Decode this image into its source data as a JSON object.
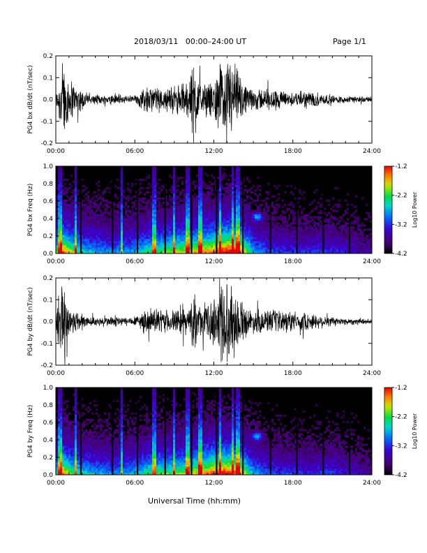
{
  "header": {
    "title": "2018/03/11   00:00–24:00 UT",
    "page": "Page 1/1"
  },
  "footer": {
    "xlabel": "Universal Time (hh:mm)"
  },
  "chart_data": [
    {
      "type": "line",
      "ylabel": "PG4 bx dB/dt (nT/sec)",
      "xlim": [
        0,
        24
      ],
      "ylim": [
        -0.2,
        0.2
      ],
      "x_ticks": [
        "00:00",
        "06:00",
        "12:00",
        "18:00",
        "24:00"
      ],
      "y_ticks": [
        "-0.2",
        "-0.1",
        "0.0",
        "0.1",
        "0.2"
      ],
      "series": [
        {
          "x": [
            0,
            0.3,
            0.5,
            0.8,
            1.2,
            1.5,
            2.0,
            2.5,
            3.0,
            4.0,
            4.5,
            5.0,
            6.0,
            6.5,
            7.0,
            8.0,
            9.0,
            10.0,
            10.5,
            11.0,
            12.0,
            12.5,
            13.0,
            13.5,
            14.0,
            14.5,
            15.0,
            16.0,
            17.0,
            18.0,
            19.0,
            20.0,
            21.0,
            22.0,
            23.0,
            24.0
          ],
          "values": [
            0.02,
            0.12,
            0.2,
            0.12,
            0.09,
            0.06,
            0.05,
            0.02,
            0.02,
            0.02,
            0.03,
            0.02,
            0.02,
            0.04,
            0.06,
            0.05,
            0.06,
            0.08,
            0.2,
            0.06,
            0.08,
            0.15,
            0.2,
            0.17,
            0.1,
            0.05,
            0.05,
            0.05,
            0.04,
            0.03,
            0.04,
            0.03,
            0.02,
            0.015,
            0.015,
            0.01
          ]
        }
      ]
    },
    {
      "type": "heatmap",
      "ylabel": "PG4 bx Freq (Hz)",
      "xlim": [
        0,
        24
      ],
      "ylim": [
        0,
        1
      ],
      "x_ticks": [
        "00:00",
        "06:00",
        "12:00",
        "18:00",
        "24:00"
      ],
      "y_ticks": [
        "0.0",
        "0.2",
        "0.4",
        "0.6",
        "0.8",
        "1.0"
      ],
      "colorbar": {
        "label": "Log10 Power",
        "min": -4.2,
        "max": -1.2,
        "ticks": [
          "-1.2",
          "-2.2",
          "-3.2",
          "-4.2"
        ]
      },
      "gaps_hours": [
        1.9,
        4.3,
        6.2,
        8.3,
        10.3,
        12.2,
        14.2,
        16.3,
        18.3,
        20.3,
        22.3
      ],
      "bright_columns_hours": [
        0.3,
        1.5,
        5.0,
        7.5,
        9.0,
        10.0,
        11.0,
        12.5,
        13.4,
        13.8
      ],
      "activity_hours": [
        0,
        0.5,
        1.0,
        2.0,
        3.0,
        4.0,
        5.0,
        6.0,
        7.0,
        8.0,
        9.0,
        10.0,
        11.0,
        12.0,
        13.0,
        14.0,
        15.0,
        16.0,
        17.0,
        18.0,
        19.0,
        20.0,
        21.0,
        22.0,
        23.0,
        24.0
      ],
      "activity_levels": [
        0.55,
        0.85,
        0.7,
        0.5,
        0.45,
        0.4,
        0.4,
        0.45,
        0.55,
        0.6,
        0.65,
        0.7,
        0.75,
        0.8,
        0.95,
        0.85,
        0.45,
        0.35,
        0.3,
        0.3,
        0.28,
        0.3,
        0.3,
        0.25,
        0.2,
        0.15
      ],
      "feature": {
        "x_hours": 15.3,
        "y_hz": 0.42
      }
    },
    {
      "type": "line",
      "ylabel": "PG4 by dB/dt (nT/sec)",
      "xlim": [
        0,
        24
      ],
      "ylim": [
        -0.2,
        0.2
      ],
      "x_ticks": [
        "00:00",
        "06:00",
        "12:00",
        "18:00",
        "24:00"
      ],
      "y_ticks": [
        "-0.2",
        "-0.1",
        "0.0",
        "0.1",
        "0.2"
      ],
      "series": [
        {
          "x": [
            0,
            0.3,
            0.5,
            0.8,
            1.2,
            1.5,
            2.0,
            2.5,
            3.0,
            4.0,
            4.5,
            5.0,
            6.0,
            6.5,
            7.0,
            8.0,
            9.0,
            10.0,
            10.5,
            11.0,
            12.0,
            12.5,
            13.0,
            13.5,
            14.0,
            14.5,
            15.0,
            16.0,
            17.0,
            18.0,
            19.0,
            20.0,
            21.0,
            22.0,
            23.0,
            24.0
          ],
          "values": [
            0.03,
            0.15,
            0.2,
            0.1,
            0.06,
            0.05,
            0.04,
            0.02,
            0.02,
            0.02,
            0.03,
            0.02,
            0.02,
            0.04,
            0.05,
            0.05,
            0.05,
            0.06,
            0.12,
            0.06,
            0.1,
            0.2,
            0.18,
            0.15,
            0.1,
            0.06,
            0.05,
            0.05,
            0.05,
            0.04,
            0.04,
            0.03,
            0.02,
            0.015,
            0.015,
            0.01
          ]
        }
      ]
    },
    {
      "type": "heatmap",
      "ylabel": "PG4 by Freq (Hz)",
      "xlim": [
        0,
        24
      ],
      "ylim": [
        0,
        1
      ],
      "x_ticks": [
        "00:00",
        "06:00",
        "12:00",
        "18:00",
        "24:00"
      ],
      "y_ticks": [
        "0.0",
        "0.2",
        "0.4",
        "0.6",
        "0.8",
        "1.0"
      ],
      "colorbar": {
        "label": "Log10 Power",
        "min": -4.2,
        "max": -1.2,
        "ticks": [
          "-1.2",
          "-2.2",
          "-3.2",
          "-4.2"
        ]
      },
      "gaps_hours": [
        1.9,
        4.3,
        6.2,
        8.3,
        10.3,
        12.2,
        14.2,
        16.3,
        18.3,
        20.3,
        22.3
      ],
      "bright_columns_hours": [
        0.3,
        1.5,
        5.0,
        7.5,
        9.0,
        10.0,
        11.0,
        12.5,
        13.4,
        13.8
      ],
      "activity_hours": [
        0,
        0.5,
        1.0,
        2.0,
        3.0,
        4.0,
        5.0,
        6.0,
        7.0,
        8.0,
        9.0,
        10.0,
        11.0,
        12.0,
        13.0,
        14.0,
        15.0,
        16.0,
        17.0,
        18.0,
        19.0,
        20.0,
        21.0,
        22.0,
        23.0,
        24.0
      ],
      "activity_levels": [
        0.5,
        0.8,
        0.65,
        0.5,
        0.45,
        0.4,
        0.4,
        0.45,
        0.55,
        0.6,
        0.6,
        0.65,
        0.75,
        0.85,
        0.9,
        0.8,
        0.45,
        0.35,
        0.3,
        0.3,
        0.28,
        0.3,
        0.3,
        0.25,
        0.2,
        0.15
      ],
      "feature": {
        "x_hours": 15.3,
        "y_hz": 0.44
      }
    }
  ]
}
